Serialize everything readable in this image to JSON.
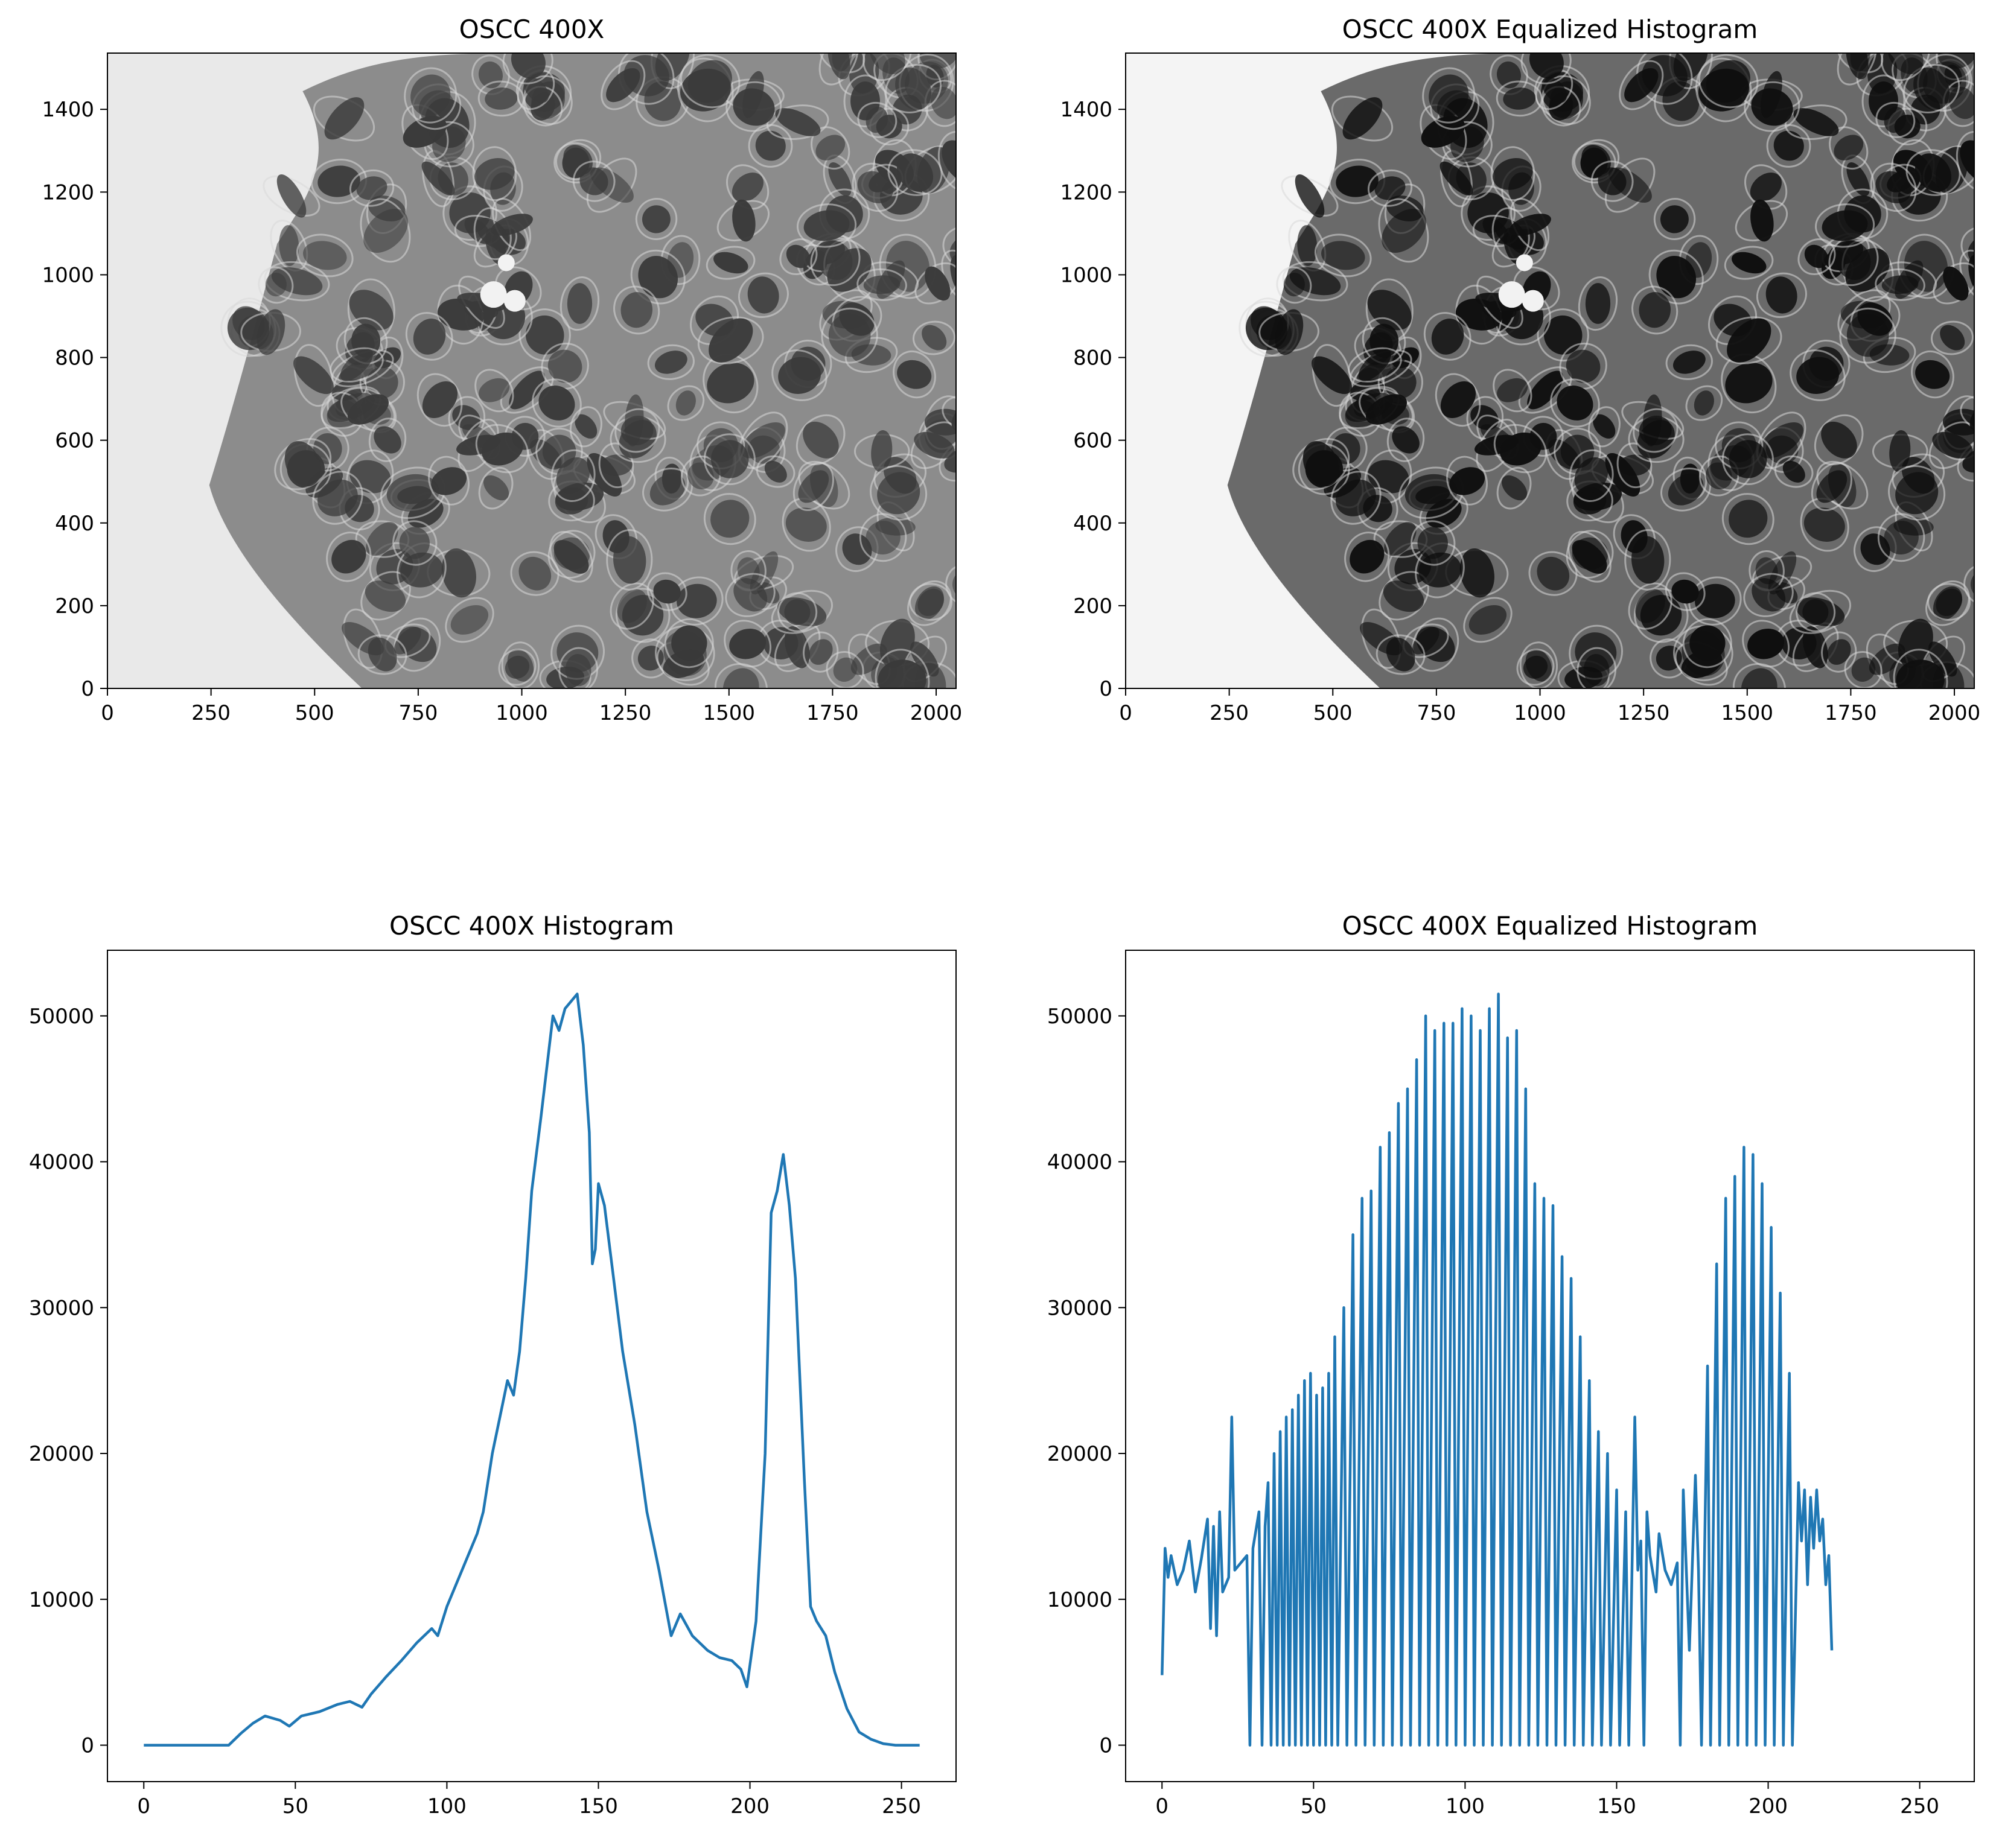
{
  "chart_data": [
    {
      "type": "image",
      "title": "OSCC 400X",
      "xticks": [
        0,
        250,
        500,
        750,
        1000,
        1250,
        1500,
        1750,
        2000
      ],
      "yticks": [
        0,
        200,
        400,
        600,
        800,
        1000,
        1200,
        1400
      ],
      "xlim": [
        0,
        2048
      ],
      "ylim": [
        1536,
        0
      ],
      "tissue_tone": "#8c8c8c",
      "background_tone": "#e9e9e9",
      "nucleus_tone": "#3a3a3a"
    },
    {
      "type": "image",
      "title": "OSCC 400X Equalized Histogram",
      "xticks": [
        0,
        250,
        500,
        750,
        1000,
        1250,
        1500,
        1750,
        2000
      ],
      "yticks": [
        0,
        200,
        400,
        600,
        800,
        1000,
        1200,
        1400
      ],
      "xlim": [
        0,
        2048
      ],
      "ylim": [
        1536,
        0
      ],
      "tissue_tone": "#6a6a6a",
      "background_tone": "#f4f4f4",
      "nucleus_tone": "#0f0f0f"
    },
    {
      "type": "line",
      "title": "OSCC 400X Histogram",
      "xticks": [
        0,
        50,
        100,
        150,
        200,
        250
      ],
      "yticks": [
        0,
        10000,
        20000,
        30000,
        40000,
        50000
      ],
      "xlim": [
        -12,
        268
      ],
      "ylim": [
        -2500,
        54500
      ],
      "color": "#1f77b4",
      "points": [
        [
          0,
          0
        ],
        [
          28,
          0
        ],
        [
          32,
          800
        ],
        [
          36,
          1500
        ],
        [
          40,
          2000
        ],
        [
          45,
          1700
        ],
        [
          48,
          1300
        ],
        [
          52,
          2000
        ],
        [
          58,
          2300
        ],
        [
          64,
          2800
        ],
        [
          68,
          3000
        ],
        [
          72,
          2600
        ],
        [
          75,
          3500
        ],
        [
          80,
          4700
        ],
        [
          85,
          5800
        ],
        [
          90,
          7000
        ],
        [
          95,
          8000
        ],
        [
          97,
          7500
        ],
        [
          100,
          9500
        ],
        [
          105,
          12000
        ],
        [
          110,
          14500
        ],
        [
          112,
          16000
        ],
        [
          115,
          20000
        ],
        [
          118,
          23000
        ],
        [
          120,
          25000
        ],
        [
          122,
          24000
        ],
        [
          124,
          27000
        ],
        [
          126,
          32000
        ],
        [
          128,
          38000
        ],
        [
          131,
          43000
        ],
        [
          135,
          50000
        ],
        [
          137,
          49000
        ],
        [
          139,
          50500
        ],
        [
          141,
          51000
        ],
        [
          143,
          51500
        ],
        [
          145,
          48000
        ],
        [
          147,
          42000
        ],
        [
          148,
          33000
        ],
        [
          149,
          34000
        ],
        [
          150,
          38500
        ],
        [
          152,
          37000
        ],
        [
          155,
          32000
        ],
        [
          158,
          27000
        ],
        [
          162,
          22000
        ],
        [
          166,
          16000
        ],
        [
          170,
          12000
        ],
        [
          174,
          7500
        ],
        [
          177,
          9000
        ],
        [
          181,
          7500
        ],
        [
          186,
          6500
        ],
        [
          190,
          6000
        ],
        [
          194,
          5800
        ],
        [
          197,
          5200
        ],
        [
          199,
          4000
        ],
        [
          202,
          8500
        ],
        [
          205,
          20000
        ],
        [
          207,
          36500
        ],
        [
          209,
          38000
        ],
        [
          211,
          40500
        ],
        [
          213,
          37000
        ],
        [
          215,
          32000
        ],
        [
          218,
          18000
        ],
        [
          220,
          9500
        ],
        [
          222,
          8500
        ],
        [
          225,
          7500
        ],
        [
          228,
          5000
        ],
        [
          232,
          2500
        ],
        [
          236,
          900
        ],
        [
          240,
          400
        ],
        [
          244,
          100
        ],
        [
          248,
          0
        ],
        [
          256,
          0
        ]
      ]
    },
    {
      "type": "line",
      "title": "OSCC 400X Equalized Histogram",
      "xticks": [
        0,
        50,
        100,
        150,
        200,
        250
      ],
      "yticks": [
        0,
        10000,
        20000,
        30000,
        40000,
        50000
      ],
      "xlim": [
        -12,
        268
      ],
      "ylim": [
        -2500,
        54500
      ],
      "color": "#1f77b4",
      "points": [
        [
          0,
          4800
        ],
        [
          1,
          13500
        ],
        [
          2,
          11500
        ],
        [
          3,
          13000
        ],
        [
          5,
          11000
        ],
        [
          7,
          12000
        ],
        [
          9,
          14000
        ],
        [
          11,
          10500
        ],
        [
          13,
          12800
        ],
        [
          15,
          15500
        ],
        [
          16,
          8000
        ],
        [
          17,
          15000
        ],
        [
          18,
          7500
        ],
        [
          19,
          16000
        ],
        [
          20,
          10500
        ],
        [
          22,
          11500
        ],
        [
          23,
          22500
        ],
        [
          24,
          12000
        ],
        [
          26,
          12500
        ],
        [
          28,
          13000
        ],
        [
          29,
          0
        ],
        [
          30,
          13500
        ],
        [
          32,
          16000
        ],
        [
          33,
          0
        ],
        [
          34,
          15000
        ],
        [
          35,
          18000
        ],
        [
          36,
          0
        ],
        [
          37,
          20000
        ],
        [
          38,
          0
        ],
        [
          39,
          21500
        ],
        [
          40,
          0
        ],
        [
          41,
          22500
        ],
        [
          42,
          0
        ],
        [
          43,
          23000
        ],
        [
          44,
          0
        ],
        [
          45,
          24000
        ],
        [
          46,
          0
        ],
        [
          47,
          25000
        ],
        [
          48,
          0
        ],
        [
          49,
          25500
        ],
        [
          50,
          0
        ],
        [
          51,
          24000
        ],
        [
          52,
          0
        ],
        [
          53,
          24500
        ],
        [
          54,
          0
        ],
        [
          55,
          25500
        ],
        [
          56,
          0
        ],
        [
          57,
          28000
        ],
        [
          58,
          0
        ],
        [
          60,
          30000
        ],
        [
          61,
          0
        ],
        [
          63,
          35000
        ],
        [
          64,
          0
        ],
        [
          66,
          37500
        ],
        [
          67,
          0
        ],
        [
          69,
          38000
        ],
        [
          70,
          0
        ],
        [
          72,
          41000
        ],
        [
          73,
          0
        ],
        [
          75,
          42000
        ],
        [
          76,
          0
        ],
        [
          78,
          44000
        ],
        [
          79,
          0
        ],
        [
          81,
          45000
        ],
        [
          82,
          0
        ],
        [
          84,
          47000
        ],
        [
          85,
          0
        ],
        [
          87,
          50000
        ],
        [
          88,
          0
        ],
        [
          90,
          49000
        ],
        [
          91,
          0
        ],
        [
          93,
          49500
        ],
        [
          94,
          0
        ],
        [
          96,
          49500
        ],
        [
          97,
          0
        ],
        [
          99,
          50500
        ],
        [
          100,
          0
        ],
        [
          102,
          50000
        ],
        [
          103,
          0
        ],
        [
          105,
          49000
        ],
        [
          106,
          0
        ],
        [
          108,
          50500
        ],
        [
          109,
          0
        ],
        [
          111,
          51500
        ],
        [
          112,
          0
        ],
        [
          114,
          48500
        ],
        [
          115,
          0
        ],
        [
          117,
          49000
        ],
        [
          118,
          0
        ],
        [
          120,
          45000
        ],
        [
          121,
          0
        ],
        [
          123,
          38500
        ],
        [
          124,
          0
        ],
        [
          126,
          37500
        ],
        [
          127,
          0
        ],
        [
          129,
          37000
        ],
        [
          130,
          0
        ],
        [
          132,
          33500
        ],
        [
          133,
          0
        ],
        [
          135,
          32000
        ],
        [
          136,
          0
        ],
        [
          138,
          28000
        ],
        [
          139,
          0
        ],
        [
          141,
          25000
        ],
        [
          142,
          0
        ],
        [
          144,
          21500
        ],
        [
          145,
          0
        ],
        [
          147,
          20000
        ],
        [
          148,
          0
        ],
        [
          150,
          17500
        ],
        [
          151,
          0
        ],
        [
          153,
          16000
        ],
        [
          154,
          0
        ],
        [
          156,
          22500
        ],
        [
          157,
          12000
        ],
        [
          158,
          14000
        ],
        [
          159,
          0
        ],
        [
          160,
          16000
        ],
        [
          161,
          13000
        ],
        [
          163,
          10500
        ],
        [
          164,
          14500
        ],
        [
          166,
          12000
        ],
        [
          168,
          11000
        ],
        [
          170,
          12500
        ],
        [
          171,
          0
        ],
        [
          172,
          17500
        ],
        [
          174,
          6500
        ],
        [
          176,
          18500
        ],
        [
          177,
          12000
        ],
        [
          178,
          0
        ],
        [
          180,
          26000
        ],
        [
          181,
          0
        ],
        [
          183,
          33000
        ],
        [
          184,
          0
        ],
        [
          186,
          37500
        ],
        [
          187,
          0
        ],
        [
          189,
          39000
        ],
        [
          190,
          0
        ],
        [
          192,
          41000
        ],
        [
          193,
          0
        ],
        [
          195,
          40500
        ],
        [
          196,
          0
        ],
        [
          198,
          38500
        ],
        [
          199,
          0
        ],
        [
          201,
          35500
        ],
        [
          202,
          0
        ],
        [
          204,
          31000
        ],
        [
          205,
          0
        ],
        [
          207,
          25500
        ],
        [
          208,
          0
        ],
        [
          210,
          18000
        ],
        [
          211,
          14000
        ],
        [
          212,
          17500
        ],
        [
          213,
          11000
        ],
        [
          214,
          17000
        ],
        [
          215,
          13500
        ],
        [
          216,
          17500
        ],
        [
          217,
          14000
        ],
        [
          218,
          15500
        ],
        [
          219,
          11000
        ],
        [
          220,
          13000
        ],
        [
          221,
          6500
        ]
      ]
    }
  ]
}
